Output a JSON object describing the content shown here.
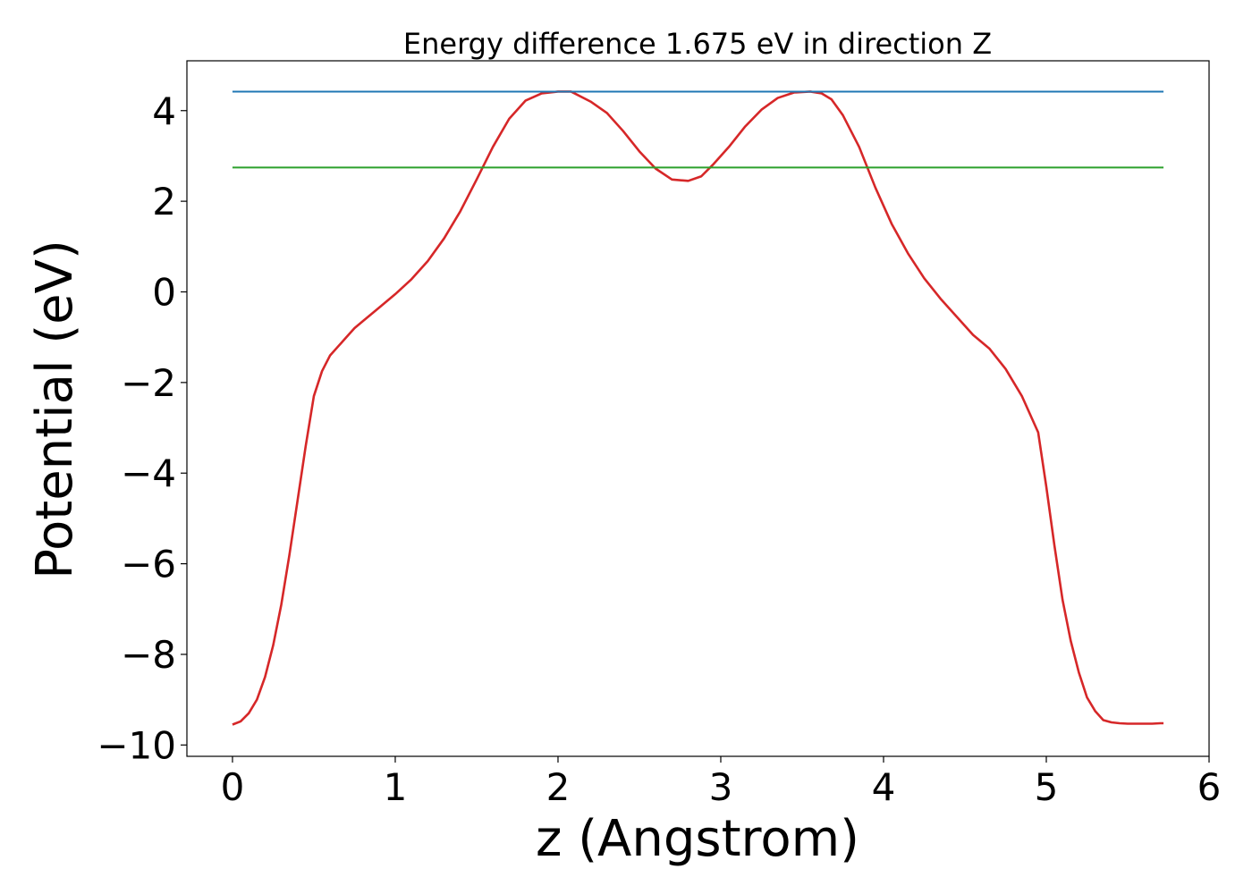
{
  "chart_data": {
    "type": "line",
    "title": "Energy difference 1.675 eV in direction Z",
    "xlabel": "z (Angstrom)",
    "ylabel": "Potential (eV)",
    "xlim": [
      -0.28,
      6.0
    ],
    "ylim": [
      -10.25,
      5.1
    ],
    "xticks": [
      0,
      1,
      2,
      3,
      4,
      5,
      6
    ],
    "xtick_labels": [
      "0",
      "1",
      "2",
      "3",
      "4",
      "5",
      "6"
    ],
    "yticks": [
      -10,
      -8,
      -6,
      -4,
      -2,
      0,
      2,
      4
    ],
    "ytick_labels": [
      "−10",
      "−8",
      "−6",
      "−4",
      "−2",
      "0",
      "2",
      "4"
    ],
    "grid": false,
    "series": [
      {
        "color": "#d62728",
        "x": [
          0.0,
          0.05,
          0.1,
          0.15,
          0.2,
          0.25,
          0.3,
          0.35,
          0.4,
          0.45,
          0.5,
          0.55,
          0.6,
          0.65,
          0.7,
          0.75,
          0.8,
          0.9,
          1.0,
          1.1,
          1.2,
          1.3,
          1.4,
          1.5,
          1.6,
          1.7,
          1.8,
          1.9,
          2.0,
          2.08,
          2.2,
          2.3,
          2.4,
          2.5,
          2.6,
          2.7,
          2.8,
          2.88,
          2.95,
          3.05,
          3.15,
          3.25,
          3.35,
          3.45,
          3.55,
          3.62,
          3.68,
          3.75,
          3.85,
          3.95,
          4.05,
          4.15,
          4.25,
          4.35,
          4.45,
          4.55,
          4.65,
          4.75,
          4.85,
          4.95,
          5.0,
          5.05,
          5.1,
          5.15,
          5.2,
          5.25,
          5.3,
          5.35,
          5.4,
          5.45,
          5.5,
          5.55,
          5.6,
          5.65,
          5.7,
          5.72
        ],
        "y": [
          -9.55,
          -9.48,
          -9.3,
          -9.0,
          -8.5,
          -7.8,
          -6.9,
          -5.8,
          -4.6,
          -3.4,
          -2.3,
          -1.75,
          -1.4,
          -1.2,
          -1.0,
          -0.8,
          -0.65,
          -0.35,
          -0.05,
          0.28,
          0.68,
          1.18,
          1.78,
          2.48,
          3.2,
          3.82,
          4.22,
          4.38,
          4.42,
          4.42,
          4.2,
          3.95,
          3.55,
          3.1,
          2.72,
          2.48,
          2.45,
          2.55,
          2.8,
          3.2,
          3.65,
          4.02,
          4.28,
          4.4,
          4.42,
          4.38,
          4.25,
          3.9,
          3.2,
          2.3,
          1.5,
          0.85,
          0.3,
          -0.15,
          -0.55,
          -0.95,
          -1.25,
          -1.7,
          -2.3,
          -3.1,
          -4.3,
          -5.6,
          -6.8,
          -7.7,
          -8.4,
          -8.95,
          -9.25,
          -9.45,
          -9.5,
          -9.52,
          -9.53,
          -9.53,
          -9.53,
          -9.53,
          -9.52,
          -9.52
        ]
      },
      {
        "color": "#1f77b4",
        "x": [
          0.0,
          5.72
        ],
        "y": [
          4.42,
          4.42
        ]
      },
      {
        "color": "#2ca02c",
        "x": [
          0.0,
          5.72
        ],
        "y": [
          2.745,
          2.745
        ]
      }
    ]
  }
}
